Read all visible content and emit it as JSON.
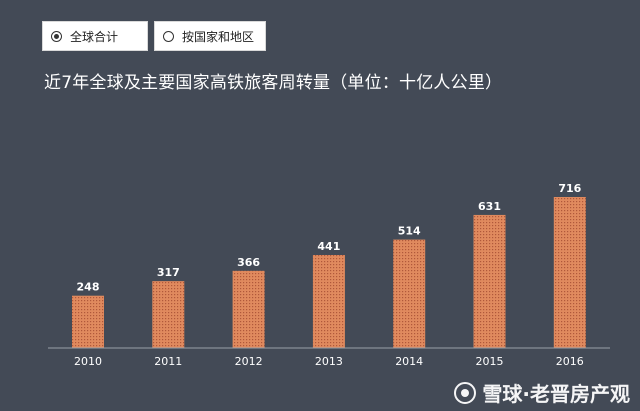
{
  "tabs": [
    {
      "label": "全球合计",
      "selected": true
    },
    {
      "label": "按国家和地区",
      "selected": false
    }
  ],
  "chart_data": {
    "type": "bar",
    "title": "近7年全球及主要国家高铁旅客周转量（单位：十亿人公里）",
    "categories": [
      "2010",
      "2011",
      "2012",
      "2013",
      "2014",
      "2015",
      "2016"
    ],
    "values": [
      248,
      317,
      366,
      441,
      514,
      631,
      716
    ],
    "ylim": [
      0,
      716
    ],
    "bar_color": "#e08a5e",
    "background": "#434a56",
    "grid": false,
    "legend": "none"
  },
  "watermark": {
    "text": "雪球·老晋房产观"
  }
}
